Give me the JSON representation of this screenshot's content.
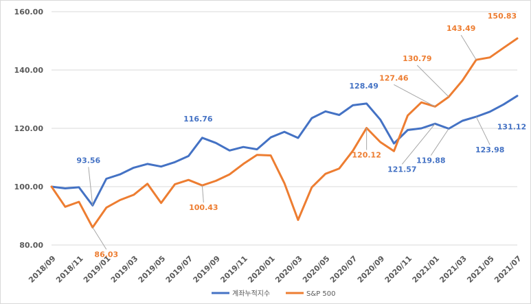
{
  "chart_data": {
    "type": "line",
    "title": "",
    "xlabel": "",
    "ylabel": "",
    "ylim": [
      80,
      160
    ],
    "yticks": [
      "80.00",
      "100.00",
      "120.00",
      "140.00",
      "160.00"
    ],
    "grid": true,
    "legend_position": "bottom",
    "x": [
      "2018/09",
      "2018/10",
      "2018/11",
      "2018/12",
      "2019/01",
      "2019/02",
      "2019/03",
      "2019/04",
      "2019/05",
      "2019/06",
      "2019/07",
      "2019/08",
      "2019/09",
      "2019/10",
      "2019/11",
      "2019/12",
      "2020/01",
      "2020/02",
      "2020/03",
      "2020/04",
      "2020/05",
      "2020/06",
      "2020/07",
      "2020/08",
      "2020/09",
      "2020/10",
      "2020/11",
      "2020/12",
      "2021/01",
      "2021/02",
      "2021/03",
      "2021/04",
      "2021/05",
      "2021/06",
      "2021/07"
    ],
    "xtick_labels": [
      "2018/09",
      "2018/11",
      "2019/01",
      "2019/03",
      "2019/05",
      "2019/07",
      "2019/09",
      "2019/11",
      "2020/01",
      "2020/03",
      "2020/05",
      "2020/07",
      "2020/09",
      "2020/11",
      "2021/01",
      "2021/03",
      "2021/05",
      "2021/07"
    ],
    "series": [
      {
        "name": "계좌누적지수",
        "color": "#4472C4",
        "values": [
          100,
          99.4,
          99.8,
          93.56,
          102.7,
          104.2,
          106.5,
          107.8,
          106.9,
          108.4,
          110.5,
          116.76,
          115.0,
          112.4,
          113.6,
          112.8,
          116.9,
          118.8,
          116.7,
          123.5,
          125.8,
          124.6,
          127.9,
          128.49,
          123.0,
          114.8,
          119.4,
          120.0,
          121.57,
          119.88,
          122.6,
          123.98,
          125.7,
          128.2,
          131.12
        ]
      },
      {
        "name": "S&P 500",
        "color": "#ED7D31",
        "values": [
          100,
          93.1,
          94.8,
          86.03,
          92.8,
          95.4,
          97.2,
          101.0,
          94.4,
          100.8,
          102.3,
          100.43,
          102.0,
          104.2,
          107.8,
          110.9,
          110.7,
          101.2,
          88.6,
          99.8,
          104.4,
          106.2,
          112.3,
          120.12,
          115.3,
          112.2,
          124.4,
          128.9,
          127.46,
          130.79,
          136.4,
          143.49,
          144.3,
          147.6,
          150.83
        ]
      }
    ],
    "annotations": [
      {
        "series": 0,
        "index": 3,
        "text": "93.56"
      },
      {
        "series": 0,
        "index": 11,
        "text": "116.76"
      },
      {
        "series": 0,
        "index": 23,
        "text": "128.49"
      },
      {
        "series": 0,
        "index": 28,
        "text": "121.57"
      },
      {
        "series": 0,
        "index": 29,
        "text": "119.88"
      },
      {
        "series": 0,
        "index": 31,
        "text": "123.98"
      },
      {
        "series": 0,
        "index": 34,
        "text": "131.12"
      },
      {
        "series": 1,
        "index": 3,
        "text": "86.03"
      },
      {
        "series": 1,
        "index": 11,
        "text": "100.43"
      },
      {
        "series": 1,
        "index": 23,
        "text": "120.12"
      },
      {
        "series": 1,
        "index": 28,
        "text": "127.46"
      },
      {
        "series": 1,
        "index": 29,
        "text": "130.79"
      },
      {
        "series": 1,
        "index": 31,
        "text": "143.49"
      },
      {
        "series": 1,
        "index": 34,
        "text": "150.83"
      }
    ]
  }
}
